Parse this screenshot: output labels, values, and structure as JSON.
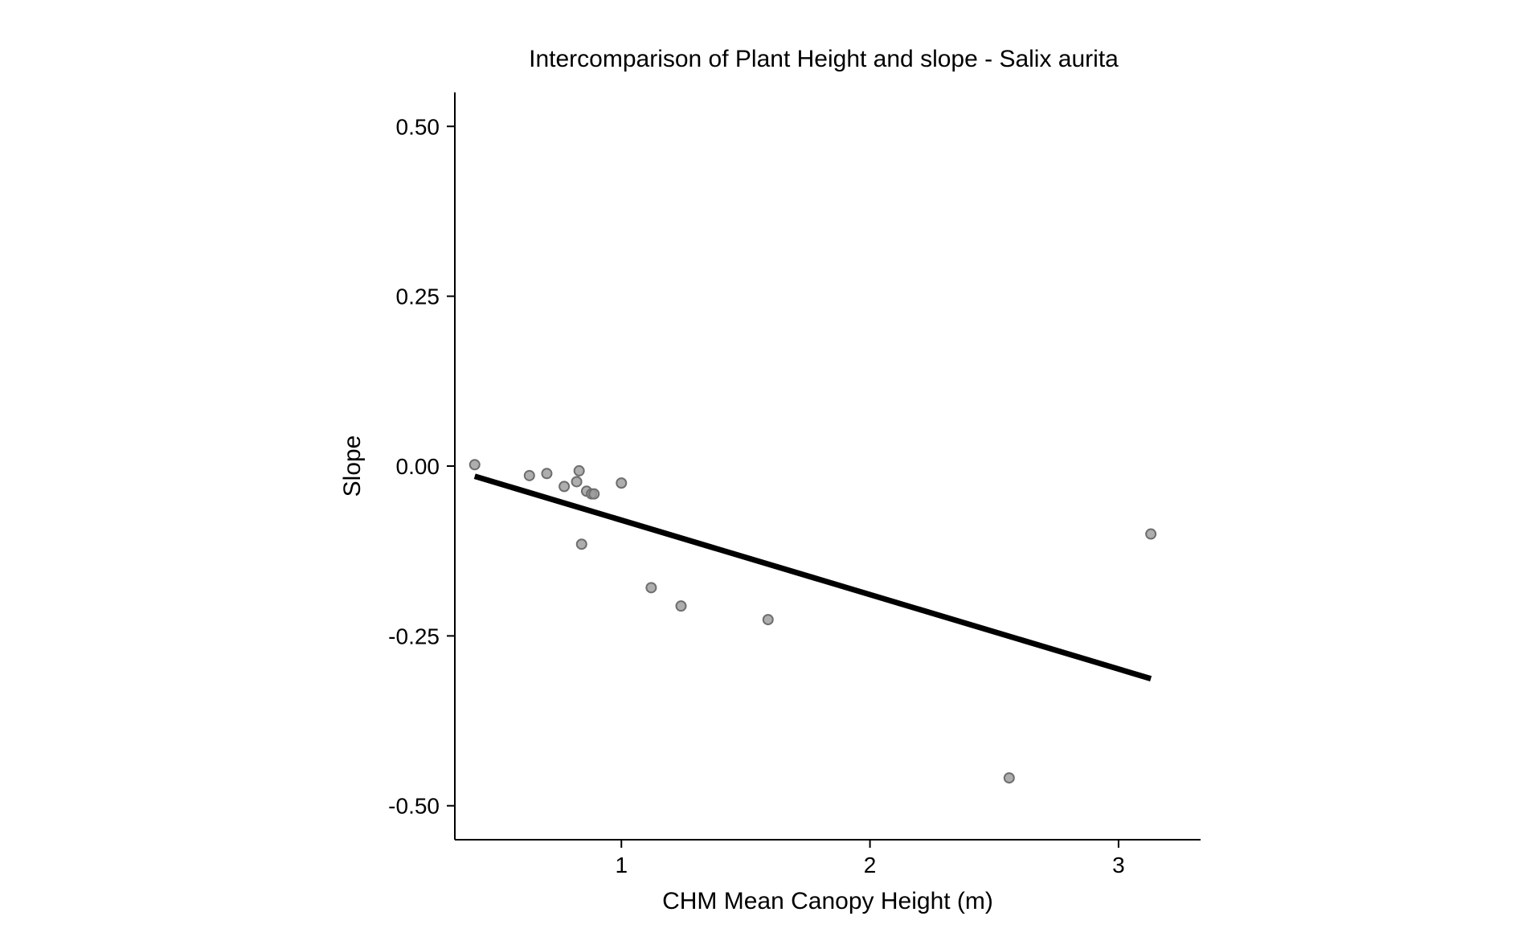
{
  "chart_data": {
    "type": "scatter",
    "title": "Intercomparison of Plant Height and slope - Salix aurita",
    "xlabel": "CHM Mean Canopy Height (m)",
    "ylabel": "Slope",
    "xlim": [
      0.33,
      3.33
    ],
    "ylim": [
      -0.55,
      0.55
    ],
    "x_ticks": [
      {
        "value": 1,
        "label": "1"
      },
      {
        "value": 2,
        "label": "2"
      },
      {
        "value": 3,
        "label": "3"
      }
    ],
    "y_ticks": [
      {
        "value": 0.5,
        "label": "0.50"
      },
      {
        "value": 0.25,
        "label": "0.25"
      },
      {
        "value": 0,
        "label": "0.00"
      },
      {
        "value": -0.25,
        "label": "-0.25"
      },
      {
        "value": -0.5,
        "label": "-0.50"
      }
    ],
    "grid": false,
    "legend": "none",
    "point_color": "#9a9a9a",
    "line_color": "#000000",
    "points": [
      {
        "x": 0.41,
        "y": 0.002
      },
      {
        "x": 0.63,
        "y": -0.014
      },
      {
        "x": 0.7,
        "y": -0.011
      },
      {
        "x": 0.77,
        "y": -0.03
      },
      {
        "x": 0.82,
        "y": -0.023
      },
      {
        "x": 0.83,
        "y": -0.007
      },
      {
        "x": 0.84,
        "y": -0.115
      },
      {
        "x": 0.86,
        "y": -0.037
      },
      {
        "x": 0.88,
        "y": -0.041
      },
      {
        "x": 0.89,
        "y": -0.041
      },
      {
        "x": 1.0,
        "y": -0.025
      },
      {
        "x": 1.12,
        "y": -0.179
      },
      {
        "x": 1.24,
        "y": -0.206
      },
      {
        "x": 1.59,
        "y": -0.226
      },
      {
        "x": 2.56,
        "y": -0.459
      },
      {
        "x": 3.13,
        "y": -0.1
      }
    ],
    "fit_line": {
      "x": [
        0.41,
        3.13
      ],
      "y": [
        -0.015,
        -0.313
      ]
    }
  }
}
